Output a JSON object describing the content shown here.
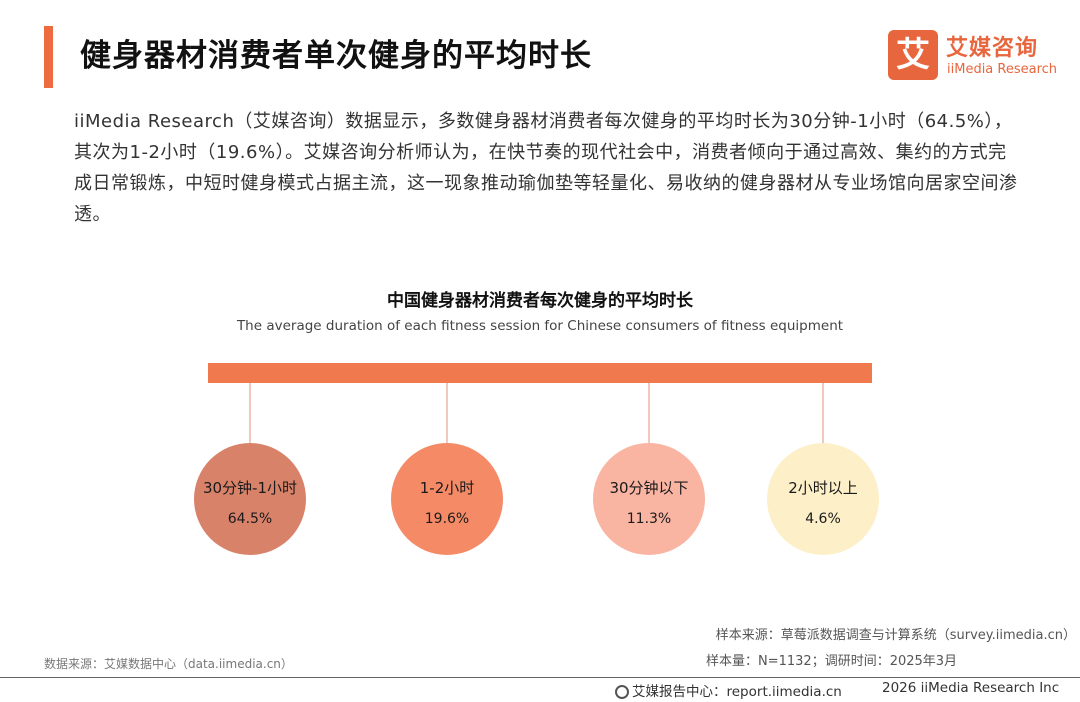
{
  "header": {
    "title": "健身器材消费者单次健身的平均时长",
    "accent_color": "#ee6a3f"
  },
  "logo": {
    "mark": "艾",
    "name_cn": "艾媒咨询",
    "name_en": "iiMedia Research",
    "icon": "iimedia-logo-icon"
  },
  "description": "iiMedia Research（艾媒咨询）数据显示，多数健身器材消费者每次健身的平均时长为30分钟-1小时（64.5%），其次为1-2小时（19.6%）。艾媒咨询分析师认为，在快节奏的现代社会中，消费者倾向于通过高效、集约的方式完成日常锻炼，中短时健身模式占据主流，这一现象推动瑜伽垫等轻量化、易收纳的健身器材从专业场馆向居家空间渗透。",
  "chart_data": {
    "type": "bubble",
    "title": "中国健身器材消费者每次健身的平均时长",
    "subtitle": "The average duration of each fitness session for Chinese consumers of fitness equipment",
    "unit": "%",
    "categories": [
      "30分钟-1小时",
      "1-2小时",
      "30分钟以下",
      "2小时以上"
    ],
    "values": [
      64.5,
      19.6,
      11.3,
      4.6
    ],
    "value_labels": [
      "64.5%",
      "19.6%",
      "11.3%",
      "4.6%"
    ],
    "colors": [
      "#d9826a",
      "#f58a66",
      "#f9b4a2",
      "#fdf0c8"
    ],
    "bar_color": "#f07a4e"
  },
  "footer": {
    "sample_source": "样本来源：草莓派数据调查与计算系统（survey.iimedia.cn）",
    "sample_size": "样本量：N=1132；调研时间：2025年3月",
    "data_source": "数据来源：艾媒数据中心（data.iimedia.cn）",
    "report_center": "艾媒报告中心：report.iimedia.cn",
    "copyright": "2026  iiMedia Research  Inc",
    "icon": "globe-icon"
  }
}
